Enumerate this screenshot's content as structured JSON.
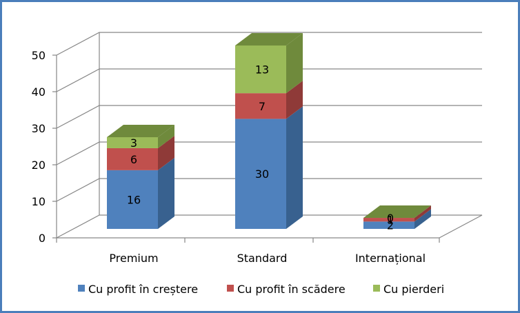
{
  "chart_data": {
    "type": "bar",
    "stacked": true,
    "three_d": true,
    "categories": [
      "Premium",
      "Standard",
      "Internațional"
    ],
    "series": [
      {
        "name": "Cu profit în creștere",
        "values": [
          16,
          30,
          2
        ],
        "color": "#4f81bd",
        "side": "#38618f",
        "top": "#6f99cb"
      },
      {
        "name": "Cu profit în scădere",
        "values": [
          6,
          7,
          1
        ],
        "color": "#c0504d",
        "side": "#8f3a38",
        "top": "#d47a78"
      },
      {
        "name": "Cu pierderi",
        "values": [
          3,
          13,
          0
        ],
        "color": "#9bbb59",
        "side": "#6f8a3c",
        "top": "#b4cd80"
      }
    ],
    "y_ticks": [
      "0",
      "10",
      "20",
      "30",
      "40",
      "50"
    ],
    "ylim": [
      0,
      50
    ],
    "grid": true,
    "legend_position": "bottom",
    "frame_color": "#4a7ebb"
  }
}
